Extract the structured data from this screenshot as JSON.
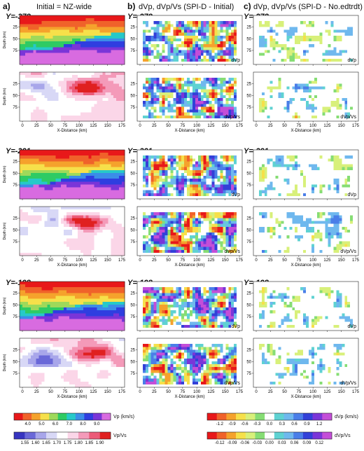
{
  "headers": {
    "a_letter": "a)",
    "a_title": "Initial = NZ-wide",
    "b_letter": "b)",
    "b_title": "dVp, dVp/Vs (SPI-D - Initial)",
    "c_letter": "c)",
    "c_title": "dVp, dVp/Vs (SPI-D - No.edtrdt)"
  },
  "sections": [
    {
      "label": "Y=-378"
    },
    {
      "label": "Y=-291"
    },
    {
      "label": "Y=-198"
    }
  ],
  "axes": {
    "depth_label": "Depth (km)",
    "x_label": "X-Distance (km)",
    "x_ticks": [
      "0",
      "25",
      "50",
      "75",
      "100",
      "125",
      "150",
      "175"
    ],
    "y_ticks": [
      "25",
      "50",
      "75"
    ]
  },
  "panel_tags": {
    "dvp": "dVp",
    "dvpvs": "dVp/Vs"
  },
  "colorbars": {
    "vp_label": "Vp (km/s)",
    "vp_ticks": [
      "4.0",
      "5.0",
      "6.0",
      "7.0",
      "8.0",
      "9.0"
    ],
    "vpvs_label": "Vp/Vs",
    "vpvs_ticks": [
      "1.55",
      "1.60",
      "1.65",
      "1.70",
      "1.75",
      "1.80",
      "1.85",
      "1.90"
    ],
    "dvp_label": "dVp (km/s)",
    "dvp_ticks": [
      "-1.2",
      "-0.9",
      "-0.6",
      "-0.3",
      "0.0",
      "0.3",
      "0.6",
      "0.9",
      "1.2"
    ],
    "dvpvs_label": "dVp/Vs",
    "dvpvs_ticks": [
      "-0.12",
      "-0.09",
      "-0.06",
      "-0.03",
      "0.00",
      "0.03",
      "0.06",
      "0.09",
      "0.12"
    ]
  },
  "colors": {
    "vp_scale": [
      "#e8181a",
      "#f0622a",
      "#f5a22c",
      "#f6e04a",
      "#9ed95a",
      "#2ecb64",
      "#26c9c9",
      "#3b8de8",
      "#2f3ee0",
      "#7a35d8",
      "#d86be0"
    ],
    "vpvs_scale": [
      "#3634c0",
      "#6a68d8",
      "#a8a6ea",
      "#d8d8f6",
      "#ffffff",
      "#fbd6e8",
      "#f49ab9",
      "#ec5a78",
      "#e02020"
    ],
    "dvp_scale": [
      "#e8181a",
      "#f0622a",
      "#f5a22c",
      "#f6e04a",
      "#d8f07a",
      "#86dd74",
      "#ffffff",
      "#5fd2d2",
      "#6fb8ee",
      "#4a7ee8",
      "#3240d8",
      "#7a35d8",
      "#c44ed8"
    ]
  }
}
